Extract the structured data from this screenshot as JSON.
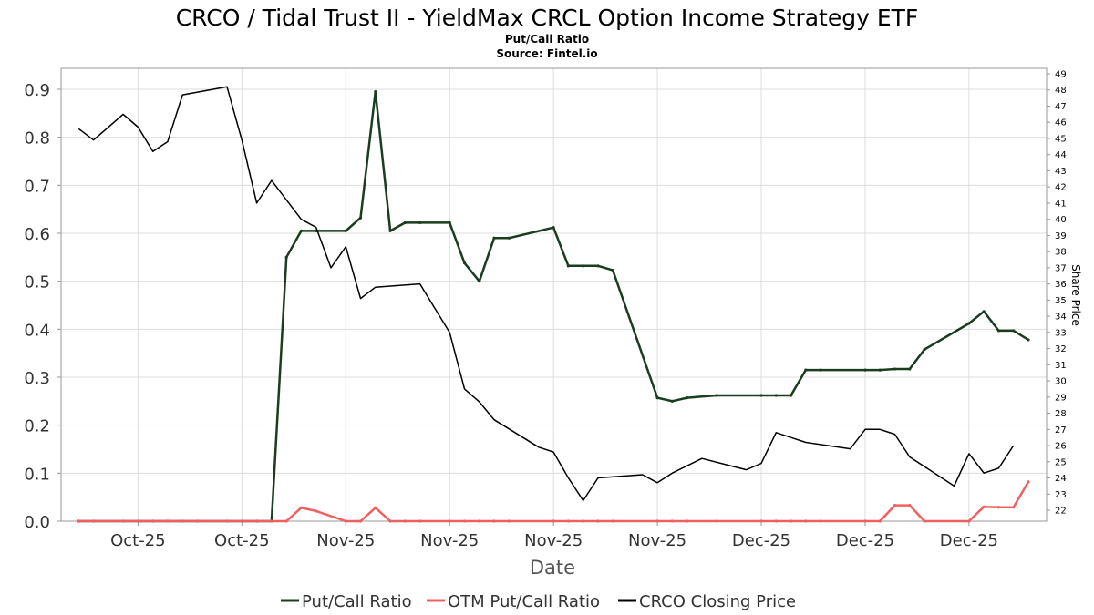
{
  "chart_data": {
    "type": "line",
    "title": "CRCO / Tidal Trust II - YieldMax CRCL Option Income Strategy ETF",
    "subtitle": "Put/Call Ratio",
    "source": "Source: Fintel.io",
    "xlabel": "Date",
    "ylabel_right": "Share Price",
    "ylim_left": [
      0,
      0.9
    ],
    "yticks_left": [
      "0.0",
      "0.1",
      "0.2",
      "0.3",
      "0.4",
      "0.5",
      "0.6",
      "0.7",
      "0.8",
      "0.9"
    ],
    "ylim_right": [
      22,
      49
    ],
    "yticks_right": [
      "22",
      "23",
      "24",
      "25",
      "26",
      "27",
      "28",
      "29",
      "30",
      "31",
      "32",
      "33",
      "34",
      "35",
      "36",
      "37",
      "38",
      "39",
      "40",
      "41",
      "42",
      "43",
      "44",
      "45",
      "46",
      "47",
      "48",
      "49"
    ],
    "xlim": [
      0,
      64
    ],
    "xticks": [
      {
        "x": 5,
        "label": "Oct-25"
      },
      {
        "x": 12,
        "label": "Oct-25"
      },
      {
        "x": 19,
        "label": "Nov-25"
      },
      {
        "x": 26,
        "label": "Nov-25"
      },
      {
        "x": 33,
        "label": "Nov-25"
      },
      {
        "x": 40,
        "label": "Nov-25"
      },
      {
        "x": 47,
        "label": "Dec-25"
      },
      {
        "x": 54,
        "label": "Dec-25"
      },
      {
        "x": 61,
        "label": "Dec-25"
      }
    ],
    "grid": true,
    "legend_position": "bottom",
    "series": [
      {
        "name": "Put/Call Ratio",
        "axis": "left",
        "color": "#1b3d1f",
        "points": [
          [
            1,
            0
          ],
          [
            2,
            0
          ],
          [
            4,
            0
          ],
          [
            5,
            0
          ],
          [
            6,
            0
          ],
          [
            7,
            0
          ],
          [
            8,
            0
          ],
          [
            9,
            0
          ],
          [
            11,
            0
          ],
          [
            12,
            0
          ],
          [
            13,
            0
          ],
          [
            14,
            0
          ],
          [
            15,
            0.55
          ],
          [
            16,
            0.605
          ],
          [
            17,
            0.605
          ],
          [
            19,
            0.605
          ],
          [
            20,
            0.632
          ],
          [
            21,
            0.895
          ],
          [
            22,
            0.605
          ],
          [
            23,
            0.622
          ],
          [
            24,
            0.622
          ],
          [
            26,
            0.622
          ],
          [
            27,
            0.538
          ],
          [
            28,
            0.5
          ],
          [
            29,
            0.59
          ],
          [
            30,
            0.59
          ],
          [
            33,
            0.612
          ],
          [
            34,
            0.532
          ],
          [
            35,
            0.532
          ],
          [
            36,
            0.532
          ],
          [
            37,
            0.523
          ],
          [
            40,
            0.257
          ],
          [
            41,
            0.25
          ],
          [
            42,
            0.257
          ],
          [
            44,
            0.262
          ],
          [
            47,
            0.262
          ],
          [
            48,
            0.262
          ],
          [
            49,
            0.262
          ],
          [
            50,
            0.315
          ],
          [
            51,
            0.315
          ],
          [
            54,
            0.315
          ],
          [
            55,
            0.315
          ],
          [
            56,
            0.317
          ],
          [
            57,
            0.317
          ],
          [
            58,
            0.358
          ],
          [
            61,
            0.412
          ],
          [
            62,
            0.437
          ],
          [
            63,
            0.397
          ],
          [
            64,
            0.397
          ],
          [
            65,
            0.378
          ]
        ]
      },
      {
        "name": "OTM Put/Call Ratio",
        "axis": "left",
        "color": "#f06060",
        "points": [
          [
            1,
            0
          ],
          [
            2,
            0
          ],
          [
            4,
            0
          ],
          [
            5,
            0
          ],
          [
            6,
            0
          ],
          [
            7,
            0
          ],
          [
            8,
            0
          ],
          [
            9,
            0
          ],
          [
            11,
            0
          ],
          [
            12,
            0
          ],
          [
            13,
            0
          ],
          [
            14,
            0
          ],
          [
            15,
            0
          ],
          [
            16,
            0.028
          ],
          [
            17,
            0.021
          ],
          [
            19,
            0
          ],
          [
            20,
            0
          ],
          [
            21,
            0.028
          ],
          [
            22,
            0
          ],
          [
            23,
            0
          ],
          [
            24,
            0
          ],
          [
            26,
            0
          ],
          [
            27,
            0
          ],
          [
            28,
            0
          ],
          [
            29,
            0
          ],
          [
            30,
            0
          ],
          [
            33,
            0
          ],
          [
            34,
            0
          ],
          [
            35,
            0
          ],
          [
            36,
            0
          ],
          [
            37,
            0
          ],
          [
            40,
            0
          ],
          [
            41,
            0
          ],
          [
            42,
            0
          ],
          [
            44,
            0
          ],
          [
            47,
            0
          ],
          [
            48,
            0
          ],
          [
            49,
            0
          ],
          [
            50,
            0
          ],
          [
            51,
            0
          ],
          [
            54,
            0
          ],
          [
            55,
            0
          ],
          [
            56,
            0.033
          ],
          [
            57,
            0.033
          ],
          [
            58,
            0
          ],
          [
            61,
            0
          ],
          [
            62,
            0.03
          ],
          [
            63,
            0.029
          ],
          [
            64,
            0.029
          ],
          [
            65,
            0.082
          ]
        ]
      },
      {
        "name": "CRCO Closing Price",
        "axis": "right",
        "color": "#000000",
        "points": [
          [
            1,
            45.6
          ],
          [
            2,
            44.9
          ],
          [
            4,
            46.5
          ],
          [
            5,
            45.7
          ],
          [
            6,
            44.2
          ],
          [
            7,
            44.8
          ],
          [
            8,
            47.7
          ],
          [
            11,
            48.2
          ],
          [
            12,
            44.9
          ],
          [
            13,
            41.0
          ],
          [
            14,
            42.4
          ],
          [
            16,
            40.0
          ],
          [
            17,
            39.5
          ],
          [
            18,
            37.0
          ],
          [
            19,
            38.3
          ],
          [
            20,
            35.1
          ],
          [
            21,
            35.8
          ],
          [
            24,
            36.0
          ],
          [
            26,
            33.0
          ],
          [
            27,
            29.5
          ],
          [
            28,
            28.7
          ],
          [
            29,
            27.6
          ],
          [
            32,
            25.9
          ],
          [
            33,
            25.6
          ],
          [
            34,
            24.0
          ],
          [
            35,
            22.6
          ],
          [
            36,
            24.0
          ],
          [
            39,
            24.2
          ],
          [
            40,
            23.7
          ],
          [
            41,
            24.3
          ],
          [
            43,
            25.2
          ],
          [
            46,
            24.5
          ],
          [
            47,
            24.9
          ],
          [
            48,
            26.8
          ],
          [
            49,
            26.5
          ],
          [
            50,
            26.2
          ],
          [
            53,
            25.8
          ],
          [
            54,
            27.0
          ],
          [
            55,
            27.0
          ],
          [
            56,
            26.7
          ],
          [
            57,
            25.3
          ],
          [
            60,
            23.5
          ],
          [
            61,
            25.5
          ],
          [
            62,
            24.3
          ],
          [
            63,
            24.6
          ],
          [
            64,
            26.0
          ]
        ]
      }
    ]
  }
}
